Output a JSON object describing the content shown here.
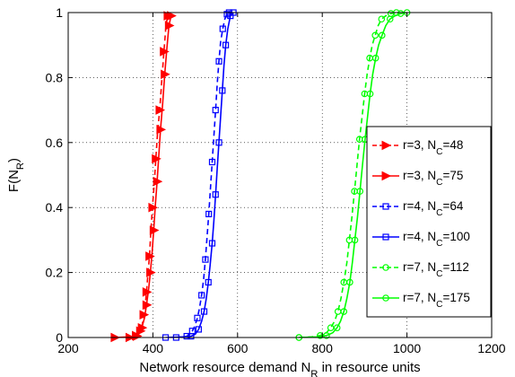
{
  "chart_data": {
    "type": "line",
    "xlabel": "Network resource demand N_R in resource units",
    "ylabel": "F(N_R)",
    "xlim": [
      200,
      1200
    ],
    "ylim": [
      0,
      1
    ],
    "xticks": [
      200,
      400,
      600,
      800,
      1000,
      1200
    ],
    "yticks": [
      0,
      0.2,
      0.4,
      0.6,
      0.8,
      1
    ],
    "xtick_labels": [
      "200",
      "400",
      "600",
      "800",
      "1000",
      "1200"
    ],
    "ytick_labels": [
      "0",
      "0.2",
      "0.4",
      "0.6",
      "0.8",
      "1"
    ],
    "grid": "on (dotted)",
    "legend_position": "right",
    "series": [
      {
        "name": "r=3, N_C=48",
        "color": "#ff0000",
        "dash": "dashed",
        "marker": "triangle-right",
        "x": [
          345,
          355,
          362,
          366,
          370,
          375,
          378,
          382,
          385,
          388,
          392,
          395,
          399,
          403,
          407,
          411,
          416,
          421,
          426,
          431,
          435
        ],
        "y": [
          0,
          0.002,
          0.004,
          0.012,
          0.02,
          0.04,
          0.07,
          0.1,
          0.14,
          0.19,
          0.25,
          0.32,
          0.4,
          0.47,
          0.55,
          0.63,
          0.7,
          0.79,
          0.88,
          0.96,
          0.99
        ]
      },
      {
        "name": "r=3, N_C=75",
        "color": "#ff0000",
        "dash": "solid",
        "marker": "triangle-right",
        "x": [
          310,
          345,
          360,
          368,
          374,
          380,
          385,
          390,
          394,
          398,
          402,
          406,
          410,
          414,
          418,
          423,
          428,
          433,
          438,
          443
        ],
        "y": [
          0,
          0.002,
          0.006,
          0.015,
          0.03,
          0.06,
          0.1,
          0.15,
          0.2,
          0.26,
          0.33,
          0.41,
          0.48,
          0.56,
          0.64,
          0.72,
          0.81,
          0.89,
          0.96,
          0.99
        ]
      },
      {
        "name": "r=4, N_C=64",
        "color": "#0000ff",
        "dash": "dashed",
        "marker": "square",
        "x": [
          455,
          470,
          480,
          487,
          493,
          499,
          505,
          510,
          515,
          520,
          524,
          528,
          532,
          536,
          540,
          544,
          548,
          552,
          556,
          560,
          565,
          570,
          575,
          580
        ],
        "y": [
          0,
          0.002,
          0.004,
          0.01,
          0.02,
          0.035,
          0.06,
          0.09,
          0.13,
          0.18,
          0.24,
          0.31,
          0.38,
          0.46,
          0.54,
          0.62,
          0.7,
          0.78,
          0.85,
          0.91,
          0.95,
          0.98,
          0.995,
          1
        ]
      },
      {
        "name": "r=4, N_C=100",
        "color": "#0000ff",
        "dash": "solid",
        "marker": "square",
        "x": [
          430,
          470,
          490,
          500,
          508,
          515,
          521,
          526,
          531,
          535,
          540,
          544,
          548,
          552,
          556,
          560,
          564,
          568,
          572,
          577,
          583,
          590
        ],
        "y": [
          0,
          0.002,
          0.004,
          0.01,
          0.025,
          0.05,
          0.08,
          0.12,
          0.17,
          0.22,
          0.29,
          0.36,
          0.44,
          0.52,
          0.6,
          0.68,
          0.76,
          0.84,
          0.9,
          0.95,
          0.99,
          1
        ]
      },
      {
        "name": "r=7, N_C=112",
        "color": "#00ff00",
        "dash": "dashed",
        "marker": "circle",
        "x": [
          745,
          775,
          795,
          810,
          820,
          829,
          837,
          844,
          851,
          858,
          864,
          870,
          876,
          882,
          888,
          894,
          900,
          906,
          912,
          918,
          925,
          932,
          940,
          950,
          962,
          975
        ],
        "y": [
          0,
          0.002,
          0.006,
          0.015,
          0.03,
          0.05,
          0.08,
          0.12,
          0.17,
          0.23,
          0.3,
          0.37,
          0.45,
          0.53,
          0.61,
          0.68,
          0.75,
          0.81,
          0.86,
          0.9,
          0.93,
          0.96,
          0.98,
          0.99,
          0.997,
          1
        ]
      },
      {
        "name": "r=7, N_C=175",
        "color": "#00ff00",
        "dash": "solid",
        "marker": "circle",
        "x": [
          745,
          790,
          810,
          825,
          835,
          843,
          851,
          858,
          865,
          871,
          877,
          883,
          889,
          895,
          901,
          907,
          913,
          919,
          926,
          933,
          941,
          950,
          960,
          972,
          985,
          1000
        ],
        "y": [
          0,
          0.002,
          0.006,
          0.015,
          0.03,
          0.05,
          0.08,
          0.12,
          0.17,
          0.23,
          0.3,
          0.37,
          0.45,
          0.53,
          0.61,
          0.68,
          0.75,
          0.81,
          0.86,
          0.9,
          0.93,
          0.96,
          0.98,
          0.99,
          0.997,
          1
        ]
      }
    ]
  }
}
